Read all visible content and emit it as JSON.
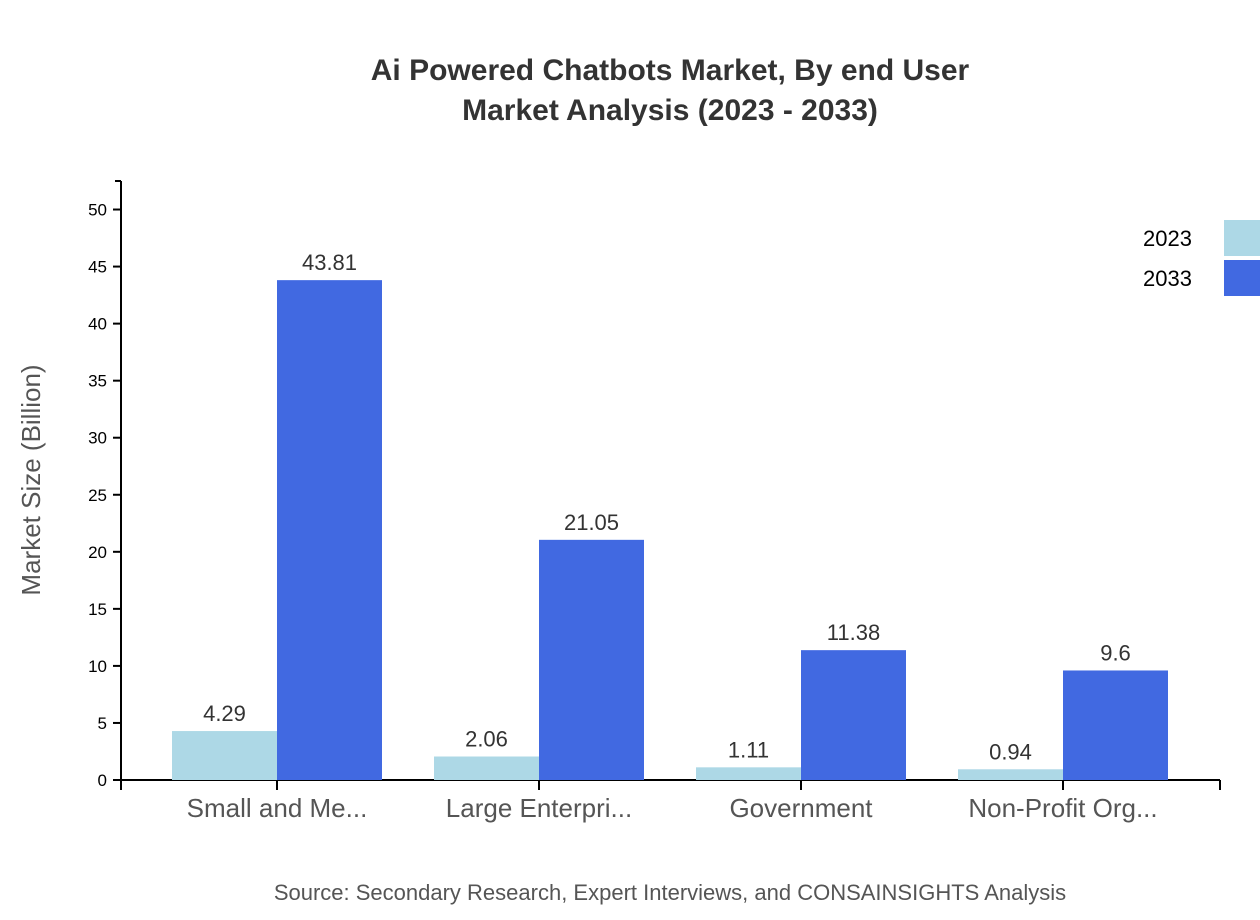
{
  "chart_data": {
    "type": "bar",
    "title": [
      "Ai Powered Chatbots Market, By end User",
      "Market Analysis (2023 - 2033)"
    ],
    "xlabel": "",
    "ylabel": "Market Size (Billion)",
    "ylim": [
      0,
      52.5
    ],
    "yticks": [
      0,
      5,
      10,
      15,
      20,
      25,
      30,
      35,
      40,
      45,
      50
    ],
    "categories": [
      "Small and Me...",
      "Large Enterpri...",
      "Government",
      "Non-Profit Org..."
    ],
    "series": [
      {
        "name": "2023",
        "color": "#add8e6",
        "values": [
          4.29,
          2.06,
          1.11,
          0.94
        ]
      },
      {
        "name": "2033",
        "color": "#4169e1",
        "values": [
          43.81,
          21.05,
          11.38,
          9.6
        ]
      }
    ],
    "legend": "top-right",
    "grid": false,
    "source": "Source: Secondary Research, Expert Interviews, and CONSAINSIGHTS Analysis"
  }
}
